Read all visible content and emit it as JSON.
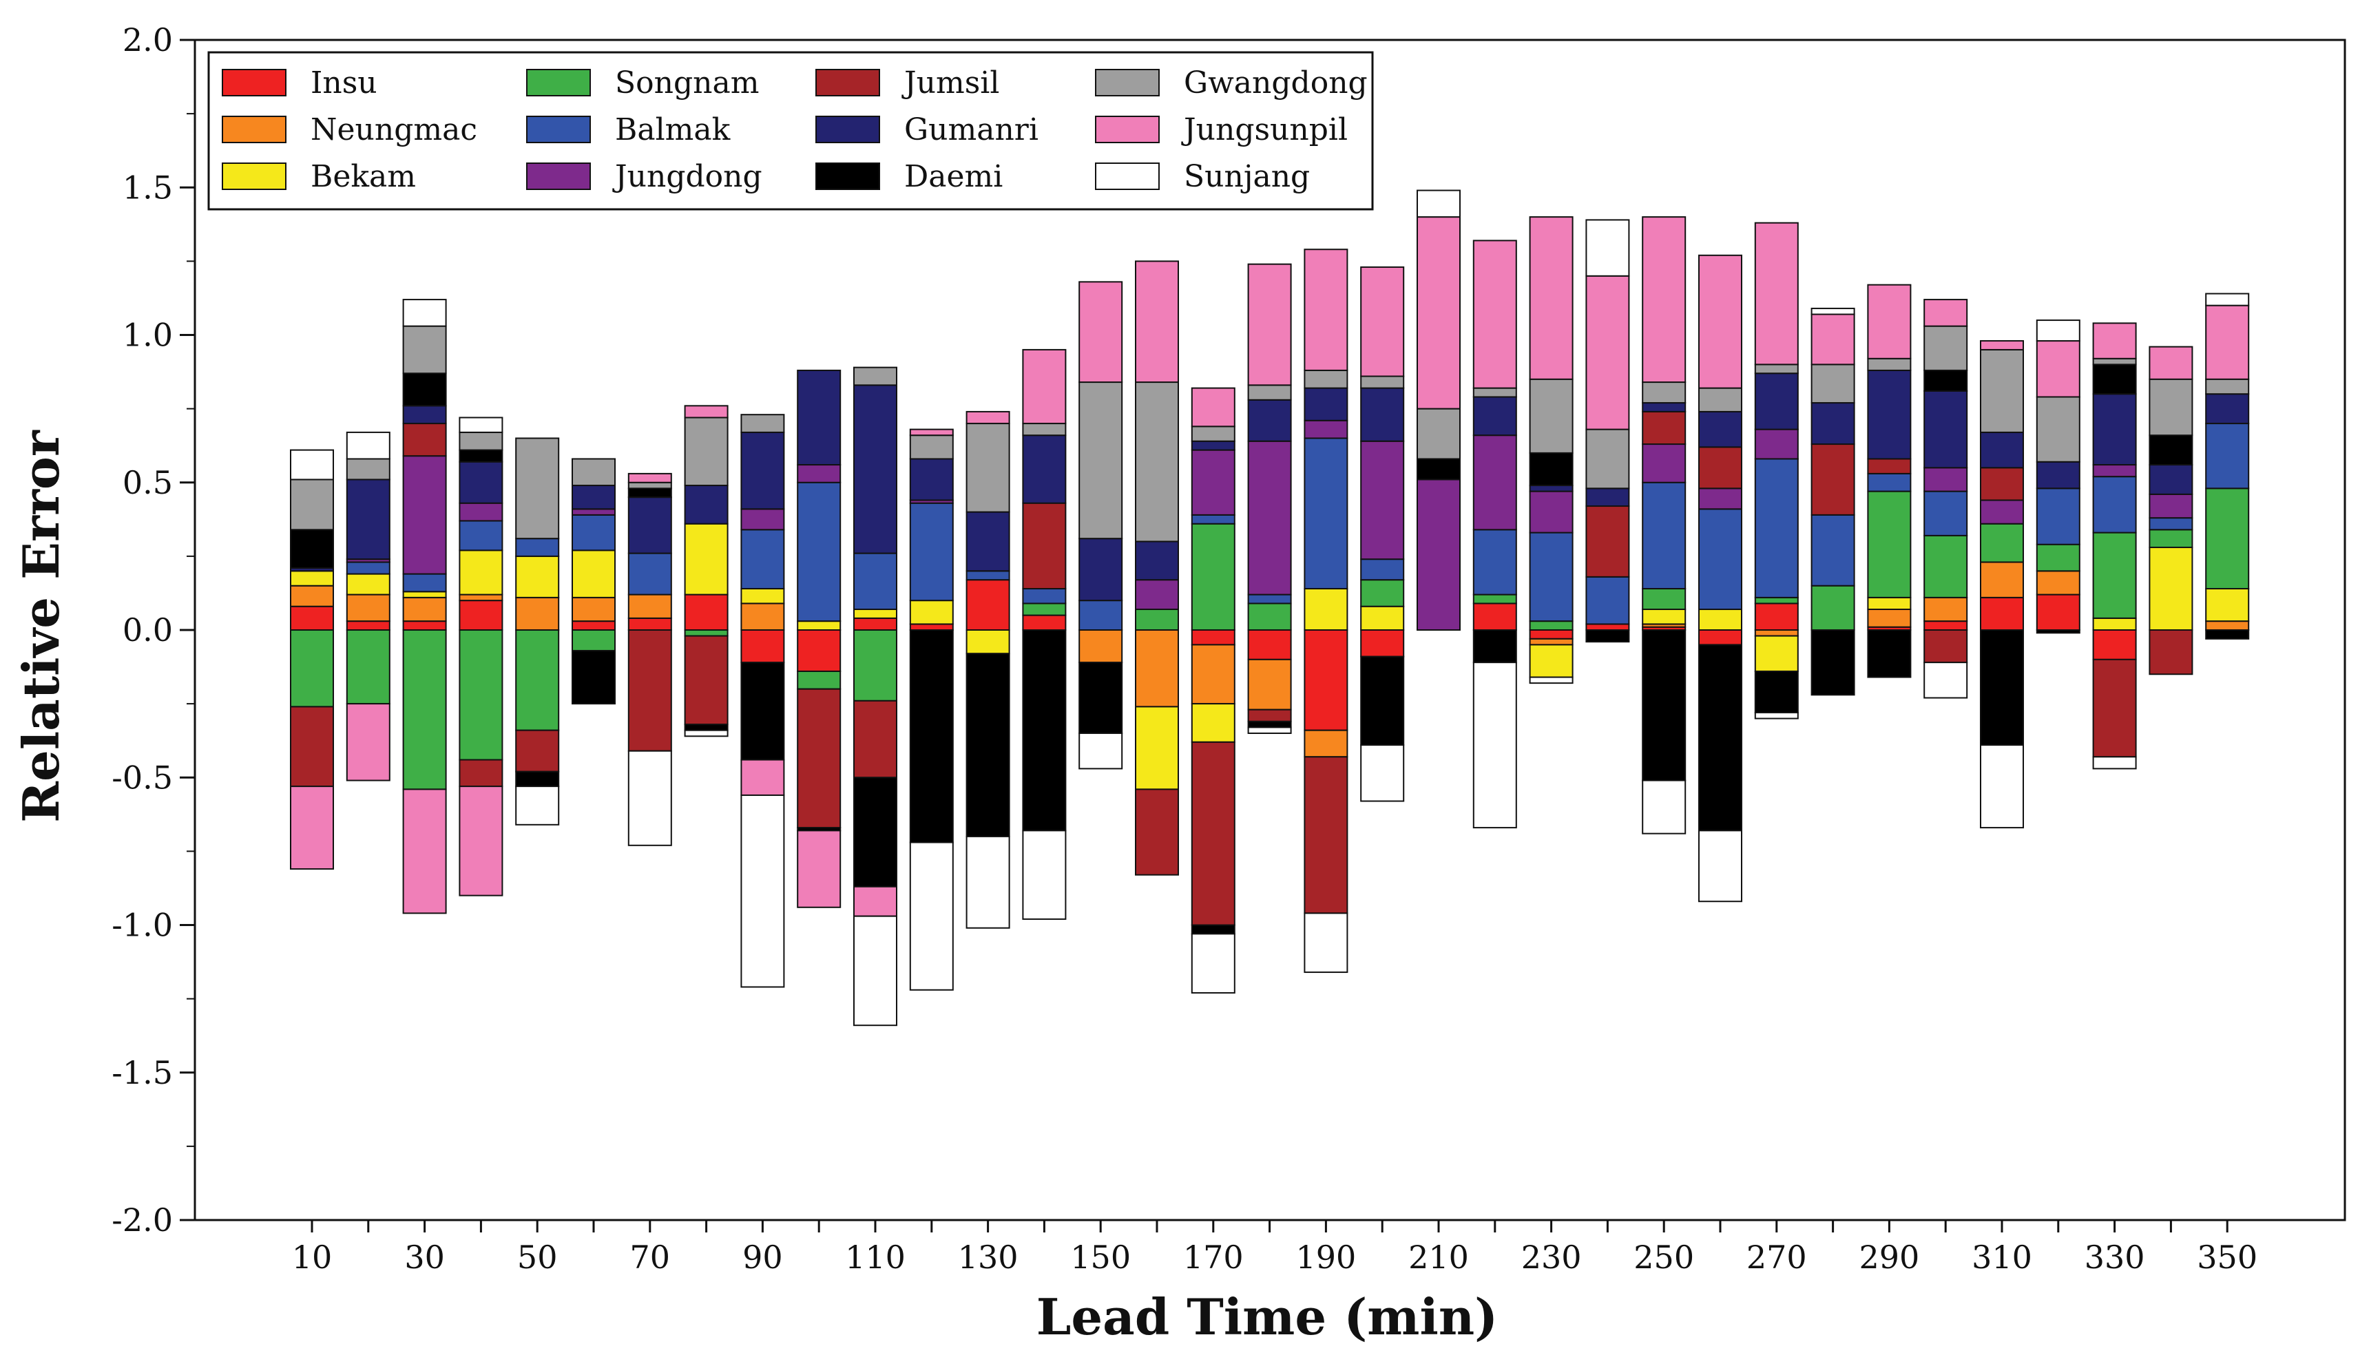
{
  "chart_data": {
    "type": "bar",
    "stacked": "diverging",
    "xlabel": "Lead Time (min)",
    "ylabel": "Relative Error",
    "ylim": [
      -2.0,
      2.0
    ],
    "yticks": [
      "2.0",
      "1.5",
      "1.0",
      "0.5",
      "0.0",
      "-0.5",
      "-1.0",
      "-1.5",
      "-2.0"
    ],
    "xtick_labels": [
      "10",
      "30",
      "50",
      "70",
      "90",
      "110",
      "130",
      "150",
      "170",
      "190",
      "210",
      "230",
      "250",
      "270",
      "290",
      "310",
      "330",
      "350"
    ],
    "legend_position": "top-left",
    "grid": false,
    "categories": [
      10,
      20,
      30,
      40,
      50,
      60,
      70,
      80,
      90,
      100,
      110,
      120,
      130,
      140,
      150,
      160,
      170,
      180,
      190,
      200,
      210,
      220,
      230,
      240,
      250,
      260,
      270,
      280,
      290,
      300,
      310,
      320,
      330,
      340,
      350
    ],
    "series": [
      {
        "name": "Insu",
        "color": "#EE2222",
        "values": [
          0.08,
          0.03,
          0.03,
          0.1,
          0.0,
          0.03,
          0.04,
          0.12,
          -0.11,
          -0.14,
          0.04,
          0.02,
          0.17,
          0.05,
          0.0,
          0.0,
          -0.05,
          -0.1,
          -0.34,
          -0.09,
          0.0,
          0.09,
          -0.03,
          0.02,
          0.01,
          -0.05,
          0.09,
          0.0,
          0.01,
          0.03,
          0.11,
          0.12,
          -0.1,
          0.0,
          0.0
        ]
      },
      {
        "name": "Neungmac",
        "color": "#F7871F",
        "values": [
          0.07,
          0.09,
          0.08,
          0.02,
          0.11,
          0.08,
          0.08,
          0.0,
          0.09,
          0.0,
          0.0,
          0.0,
          0.0,
          0.0,
          -0.11,
          -0.26,
          -0.2,
          -0.17,
          -0.09,
          0.0,
          0.0,
          0.0,
          -0.02,
          0.0,
          0.01,
          0.0,
          -0.02,
          0.0,
          0.06,
          0.08,
          0.12,
          0.08,
          0.0,
          0.0,
          0.03
        ]
      },
      {
        "name": "Bekam",
        "color": "#F5E81A",
        "values": [
          0.05,
          0.07,
          0.02,
          0.15,
          0.14,
          0.16,
          0.0,
          0.24,
          0.05,
          0.03,
          0.03,
          0.08,
          -0.08,
          0.0,
          0.0,
          -0.28,
          -0.13,
          0.0,
          0.14,
          0.08,
          0.0,
          0.0,
          -0.11,
          0.0,
          0.05,
          0.07,
          -0.12,
          0.0,
          0.04,
          0.0,
          0.0,
          0.0,
          0.04,
          0.28,
          0.11
        ]
      },
      {
        "name": "Songnam",
        "color": "#3FAF47",
        "values": [
          -0.26,
          -0.25,
          -0.54,
          -0.44,
          -0.34,
          -0.07,
          0.0,
          -0.02,
          0.0,
          -0.06,
          -0.24,
          0.0,
          0.0,
          0.04,
          0.0,
          0.07,
          0.36,
          0.09,
          0.0,
          0.09,
          0.0,
          0.03,
          0.03,
          0.0,
          0.07,
          0.0,
          0.02,
          0.15,
          0.36,
          0.21,
          0.13,
          0.09,
          0.29,
          0.06,
          0.34
        ]
      },
      {
        "name": "Balmak",
        "color": "#3355AA",
        "values": [
          0.0,
          0.04,
          0.06,
          0.1,
          0.06,
          0.12,
          0.14,
          0.0,
          0.2,
          0.47,
          0.19,
          0.33,
          0.03,
          0.05,
          0.1,
          0.0,
          0.03,
          0.03,
          0.51,
          0.07,
          0.0,
          0.22,
          0.3,
          0.16,
          0.36,
          0.34,
          0.47,
          0.24,
          0.06,
          0.15,
          0.0,
          0.19,
          0.19,
          0.04,
          0.22
        ]
      },
      {
        "name": "Jungdong",
        "color": "#7E2A8C",
        "values": [
          0.0,
          0.01,
          0.4,
          0.06,
          0.0,
          0.02,
          0.0,
          0.0,
          0.07,
          0.06,
          0.0,
          0.01,
          0.0,
          0.0,
          0.0,
          0.1,
          0.22,
          0.52,
          0.06,
          0.4,
          0.51,
          0.32,
          0.14,
          0.0,
          0.13,
          0.07,
          0.1,
          0.0,
          0.0,
          0.08,
          0.08,
          0.0,
          0.04,
          0.08,
          0.0
        ]
      },
      {
        "name": "Jumsil",
        "color": "#A62428",
        "values": [
          -0.27,
          0.0,
          0.11,
          -0.09,
          -0.14,
          0.0,
          -0.41,
          -0.3,
          0.0,
          -0.47,
          -0.26,
          0.0,
          0.0,
          0.29,
          0.0,
          -0.29,
          -0.62,
          -0.04,
          -0.53,
          0.0,
          0.0,
          0.0,
          0.0,
          0.24,
          0.11,
          0.14,
          0.0,
          0.24,
          0.05,
          -0.11,
          0.11,
          0.0,
          -0.33,
          -0.15,
          0.0
        ]
      },
      {
        "name": "Gumanri",
        "color": "#232370",
        "values": [
          0.01,
          0.27,
          0.06,
          0.14,
          0.0,
          0.08,
          0.19,
          0.13,
          0.26,
          0.32,
          0.57,
          0.14,
          0.2,
          0.23,
          0.21,
          0.13,
          0.03,
          0.14,
          0.11,
          0.18,
          0.0,
          0.13,
          0.02,
          0.06,
          0.03,
          0.12,
          0.19,
          0.14,
          0.3,
          0.26,
          0.12,
          0.09,
          0.24,
          0.1,
          0.1
        ]
      },
      {
        "name": "Daemi",
        "color": "#000000",
        "values": [
          0.13,
          0.0,
          0.11,
          0.04,
          -0.05,
          -0.18,
          0.03,
          -0.02,
          -0.33,
          -0.01,
          -0.37,
          -0.72,
          -0.62,
          -0.68,
          -0.24,
          0.0,
          -0.03,
          -0.02,
          0.0,
          -0.3,
          0.07,
          -0.11,
          0.11,
          -0.04,
          -0.51,
          -0.63,
          -0.14,
          -0.22,
          -0.16,
          0.07,
          -0.39,
          -0.01,
          0.1,
          0.1,
          -0.03
        ]
      },
      {
        "name": "Gwangdong",
        "color": "#9E9E9E",
        "values": [
          0.17,
          0.07,
          0.16,
          0.06,
          0.34,
          0.09,
          0.02,
          0.23,
          0.06,
          0.0,
          0.06,
          0.08,
          0.3,
          0.04,
          0.53,
          0.54,
          0.05,
          0.05,
          0.06,
          0.04,
          0.17,
          0.03,
          0.25,
          0.2,
          0.07,
          0.08,
          0.03,
          0.13,
          0.04,
          0.15,
          0.28,
          0.22,
          0.02,
          0.19,
          0.05
        ]
      },
      {
        "name": "Jungsunpil",
        "color": "#F07FB8",
        "values": [
          -0.28,
          -0.26,
          -0.42,
          -0.37,
          0.0,
          0.0,
          0.03,
          0.04,
          -0.12,
          -0.26,
          -0.1,
          0.02,
          0.04,
          0.25,
          0.34,
          0.41,
          0.13,
          0.41,
          0.41,
          0.37,
          0.65,
          0.5,
          0.55,
          0.52,
          0.56,
          0.45,
          0.48,
          0.17,
          0.25,
          0.09,
          0.03,
          0.19,
          0.12,
          0.11,
          0.25
        ]
      },
      {
        "name": "Sunjang",
        "color": "#FFFFFF",
        "values": [
          0.1,
          0.09,
          0.09,
          0.05,
          -0.13,
          0.0,
          -0.32,
          -0.02,
          -0.65,
          0.0,
          -0.37,
          -0.5,
          -0.31,
          -0.3,
          -0.12,
          0.0,
          -0.2,
          -0.02,
          -0.2,
          -0.19,
          0.09,
          -0.56,
          -0.02,
          0.19,
          -0.18,
          -0.24,
          -0.02,
          0.02,
          0.0,
          -0.12,
          -0.28,
          0.07,
          -0.04,
          0.0,
          0.04
        ]
      }
    ]
  }
}
